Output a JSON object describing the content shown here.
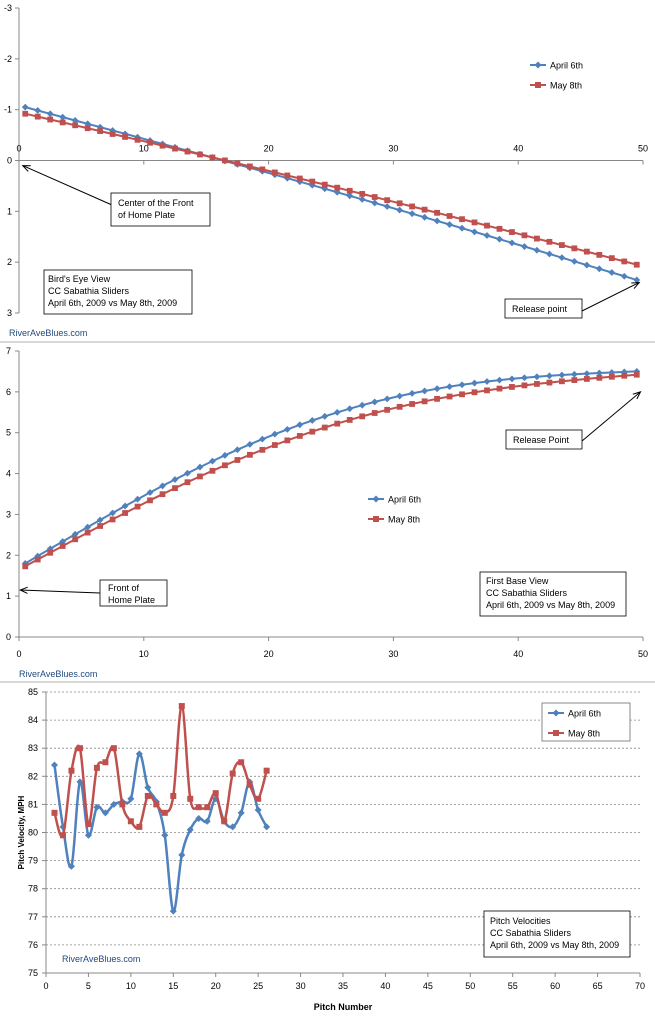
{
  "colors": {
    "april": "#4f81bd",
    "may": "#c0504d"
  },
  "chart_data": [
    {
      "type": "line",
      "legend_position": "top-right",
      "grid": false,
      "xlim": [
        0,
        50
      ],
      "ylim": [
        -3,
        3
      ],
      "y_reversed": true,
      "x_ticks": [
        "0",
        "10",
        "20",
        "30",
        "40",
        "50"
      ],
      "y_ticks": [
        "-3",
        "-2",
        "-1",
        "0",
        "1",
        "2",
        "3"
      ],
      "series": [
        {
          "name": "April 6th",
          "color": "#4f81bd",
          "marker": "diamond",
          "x0": 0.5,
          "dx": 1,
          "n": 50,
          "start": -1.05,
          "end": 2.35,
          "curve": -0.06
        },
        {
          "name": "May 8th",
          "color": "#c0504d",
          "marker": "square",
          "x0": 0.5,
          "dx": 1,
          "n": 50,
          "start": -0.92,
          "end": 2.05,
          "curve": -0.06
        }
      ],
      "annotations": {
        "plate": "Center of the Front\nof Home Plate",
        "release": "Release point",
        "info": "Bird's Eye View\nCC Sabathia Sliders\nApril 6th, 2009 vs May 8th, 2009",
        "watermark": "RiverAveBlues.com"
      }
    },
    {
      "type": "line",
      "legend_position": "center",
      "grid": false,
      "xlim": [
        0,
        50
      ],
      "ylim": [
        0,
        7
      ],
      "x_ticks": [
        "0",
        "10",
        "20",
        "30",
        "40",
        "50"
      ],
      "y_ticks": [
        "0",
        "1",
        "2",
        "3",
        "4",
        "5",
        "6",
        "7"
      ],
      "series": [
        {
          "name": "April 6th",
          "color": "#4f81bd",
          "marker": "diamond",
          "x0": 0.5,
          "dx": 1,
          "n": 50,
          "start": 1.8,
          "end": 6.5,
          "curve": 1.3
        },
        {
          "name": "May 8th",
          "color": "#c0504d",
          "marker": "square",
          "x0": 0.5,
          "dx": 1,
          "n": 50,
          "start": 1.73,
          "end": 6.42,
          "curve": 1.1
        }
      ],
      "annotations": {
        "plate": "Front of\nHome Plate",
        "release": "Release Point",
        "info": "First Base View\nCC Sabathia Sliders\nApril 6th, 2009 vs May 8th, 2009",
        "watermark": "RiverAveBlues.com"
      }
    },
    {
      "type": "line",
      "legend_position": "top-right",
      "grid": true,
      "xlabel": "Pitch Number",
      "ylabel": "Pitch Velocity, MPH",
      "xlim": [
        0,
        70
      ],
      "ylim": [
        75,
        85
      ],
      "x_ticks": [
        "0",
        "5",
        "10",
        "15",
        "20",
        "25",
        "30",
        "35",
        "40",
        "45",
        "50",
        "55",
        "60",
        "65",
        "70"
      ],
      "y_ticks": [
        "75",
        "76",
        "77",
        "78",
        "79",
        "80",
        "81",
        "82",
        "83",
        "84",
        "85"
      ],
      "series": [
        {
          "name": "April 6th",
          "color": "#4f81bd",
          "marker": "diamond",
          "x": [
            1,
            2,
            3,
            4,
            5,
            6,
            7,
            8,
            9,
            10,
            11,
            12,
            13,
            14,
            15,
            16,
            17,
            18,
            19,
            20,
            21,
            22,
            23,
            24,
            25,
            26
          ],
          "y": [
            82.4,
            80.2,
            78.8,
            81.8,
            79.9,
            80.9,
            80.7,
            81.0,
            81.1,
            81.2,
            82.8,
            81.6,
            81.1,
            79.9,
            77.2,
            79.2,
            80.1,
            80.5,
            80.4,
            81.2,
            80.4,
            80.2,
            80.7,
            81.8,
            80.8,
            80.2
          ]
        },
        {
          "name": "May 8th",
          "color": "#c0504d",
          "marker": "square",
          "x": [
            1,
            2,
            3,
            4,
            5,
            6,
            7,
            8,
            9,
            10,
            11,
            12,
            13,
            14,
            15,
            16,
            17,
            18,
            19,
            20,
            21,
            22,
            23,
            24,
            25,
            26
          ],
          "y": [
            80.7,
            79.9,
            82.2,
            83.0,
            80.3,
            82.3,
            82.5,
            83.0,
            81.0,
            80.4,
            80.2,
            81.3,
            81.0,
            80.7,
            81.3,
            84.5,
            81.2,
            80.9,
            80.9,
            81.4,
            80.4,
            82.1,
            82.5,
            81.7,
            81.2,
            82.2
          ]
        }
      ],
      "annotations": {
        "info": "Pitch Velocities\nCC Sabathia Sliders\nApril 6th, 2009 vs May 8th, 2009",
        "watermark": "RiverAveBlues.com"
      }
    }
  ]
}
